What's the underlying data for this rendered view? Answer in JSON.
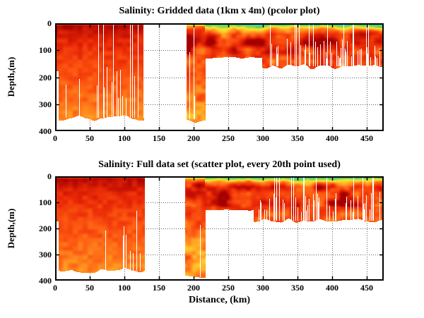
{
  "figure": {
    "background": "#ffffff",
    "axis_color": "#000000",
    "grid_color": "#606060",
    "grid_style": "dotted"
  },
  "chart_data": [
    {
      "type": "pcolor",
      "title": "Salinity: Gridded data (1km x 4m) (pcolor plot)",
      "xlabel": "",
      "ylabel": "Depth,(m)",
      "x_ticks": [
        0,
        50,
        100,
        150,
        200,
        250,
        300,
        350,
        400,
        450
      ],
      "y_ticks": [
        0,
        100,
        200,
        300,
        400
      ],
      "xlim_km": [
        0,
        474
      ],
      "depth_lim_m": [
        0,
        400
      ],
      "y_axis_reversed": true,
      "grid": "dotted",
      "seed": 7,
      "surface_scatter_row": false,
      "segments": [
        {
          "region": "west",
          "x_km": [
            1,
            5
          ],
          "bottom_m": 170,
          "bottom_noise_m": 8
        },
        {
          "region": "west",
          "x_km": [
            5,
            127
          ],
          "bottom_m": 348,
          "bottom_noise_m": 18
        },
        {
          "region": "column",
          "x_km": [
            190,
            216
          ],
          "bottom_m": 352,
          "bottom_noise_m": 15
        },
        {
          "region": "east",
          "x_km": [
            216,
            299
          ],
          "bottom_m": 126,
          "bottom_noise_m": 3
        },
        {
          "region": "east",
          "x_km": [
            299,
            474
          ],
          "bottom_m": 158,
          "bottom_noise_m": 12
        }
      ],
      "streaks": [
        {
          "x_km": [
            4,
            60
          ],
          "density": 0.05,
          "mode": "bottom"
        },
        {
          "x_km": [
            60,
            127
          ],
          "density": 0.26,
          "mode": "mixed"
        },
        {
          "x_km": [
            193,
            216
          ],
          "density": 0.2,
          "mode": "mixed"
        },
        {
          "x_km": [
            299,
            474
          ],
          "density": 0.3,
          "mode": "bottom"
        },
        {
          "x_km": [
            299,
            474
          ],
          "density": 0.07,
          "mode": "full"
        }
      ]
    },
    {
      "type": "scatter",
      "title": "Salinity: Full data set (scatter plot, every 20th point used)",
      "xlabel": "Distance, (km)",
      "ylabel": "Depth,(m)",
      "x_ticks": [
        0,
        50,
        100,
        150,
        200,
        250,
        300,
        350,
        400,
        450
      ],
      "y_ticks": [
        0,
        100,
        200,
        300,
        400
      ],
      "xlim_km": [
        0,
        474
      ],
      "depth_lim_m": [
        0,
        400
      ],
      "y_axis_reversed": true,
      "grid": "dotted",
      "seed": 13,
      "surface_scatter_row": true,
      "segments": [
        {
          "region": "west",
          "x_km": [
            1,
            5
          ],
          "bottom_m": 170,
          "bottom_noise_m": 8
        },
        {
          "region": "west",
          "x_km": [
            5,
            128
          ],
          "bottom_m": 360,
          "bottom_noise_m": 12
        },
        {
          "region": "column",
          "x_km": [
            188,
            216
          ],
          "bottom_m": 383,
          "bottom_noise_m": 10
        },
        {
          "region": "east",
          "x_km": [
            216,
            286
          ],
          "bottom_m": 126,
          "bottom_noise_m": 3
        },
        {
          "region": "east",
          "x_km": [
            286,
            474
          ],
          "bottom_m": 168,
          "bottom_noise_m": 10
        }
      ],
      "streaks": [
        {
          "x_km": [
            4,
            85
          ],
          "density": 0.03,
          "mode": "bottom"
        },
        {
          "x_km": [
            85,
            128
          ],
          "density": 0.16,
          "mode": "bottom"
        },
        {
          "x_km": [
            195,
            216
          ],
          "density": 0.15,
          "mode": "bottom"
        },
        {
          "x_km": [
            286,
            474
          ],
          "density": 0.18,
          "mode": "bottom"
        },
        {
          "x_km": [
            286,
            474
          ],
          "density": 0.04,
          "mode": "full"
        }
      ]
    }
  ],
  "colormap": [
    {
      "v": 0.0,
      "color": [
        64,
        214,
        208
      ]
    },
    {
      "v": 0.12,
      "color": [
        80,
        205,
        90
      ]
    },
    {
      "v": 0.25,
      "color": [
        170,
        220,
        60
      ]
    },
    {
      "v": 0.35,
      "color": [
        240,
        234,
        50
      ]
    },
    {
      "v": 0.47,
      "color": [
        255,
        195,
        40
      ]
    },
    {
      "v": 0.58,
      "color": [
        255,
        140,
        30
      ]
    },
    {
      "v": 0.7,
      "color": [
        252,
        84,
        16
      ]
    },
    {
      "v": 0.83,
      "color": [
        233,
        40,
        6
      ]
    },
    {
      "v": 1.0,
      "color": [
        165,
        0,
        0
      ]
    }
  ],
  "v_profiles": {
    "west": [
      [
        0,
        0.5
      ],
      [
        2,
        0.6
      ],
      [
        7,
        0.96
      ],
      [
        25,
        0.91
      ],
      [
        60,
        0.85
      ],
      [
        110,
        0.79
      ],
      [
        170,
        0.73
      ],
      [
        260,
        0.66
      ],
      [
        380,
        0.58
      ]
    ],
    "column": [
      [
        0,
        0.04
      ],
      [
        4,
        0.25
      ],
      [
        10,
        0.6
      ],
      [
        25,
        0.8
      ],
      [
        60,
        0.87
      ],
      [
        100,
        0.8
      ],
      [
        150,
        0.7
      ],
      [
        230,
        0.62
      ],
      [
        320,
        0.57
      ],
      [
        390,
        0.54
      ]
    ],
    "east": [
      [
        0,
        0.02
      ],
      [
        5,
        0.08
      ],
      [
        12,
        0.32
      ],
      [
        22,
        0.55
      ],
      [
        40,
        0.8
      ],
      [
        70,
        0.87
      ],
      [
        105,
        0.82
      ],
      [
        135,
        0.74
      ],
      [
        180,
        0.67
      ]
    ]
  },
  "noise": {
    "west_amp": 0.06,
    "column_amp": 0.08,
    "east_amp": 0.08,
    "east_blob_amp": 0.22,
    "surface_speckle_amp": 0.3
  }
}
